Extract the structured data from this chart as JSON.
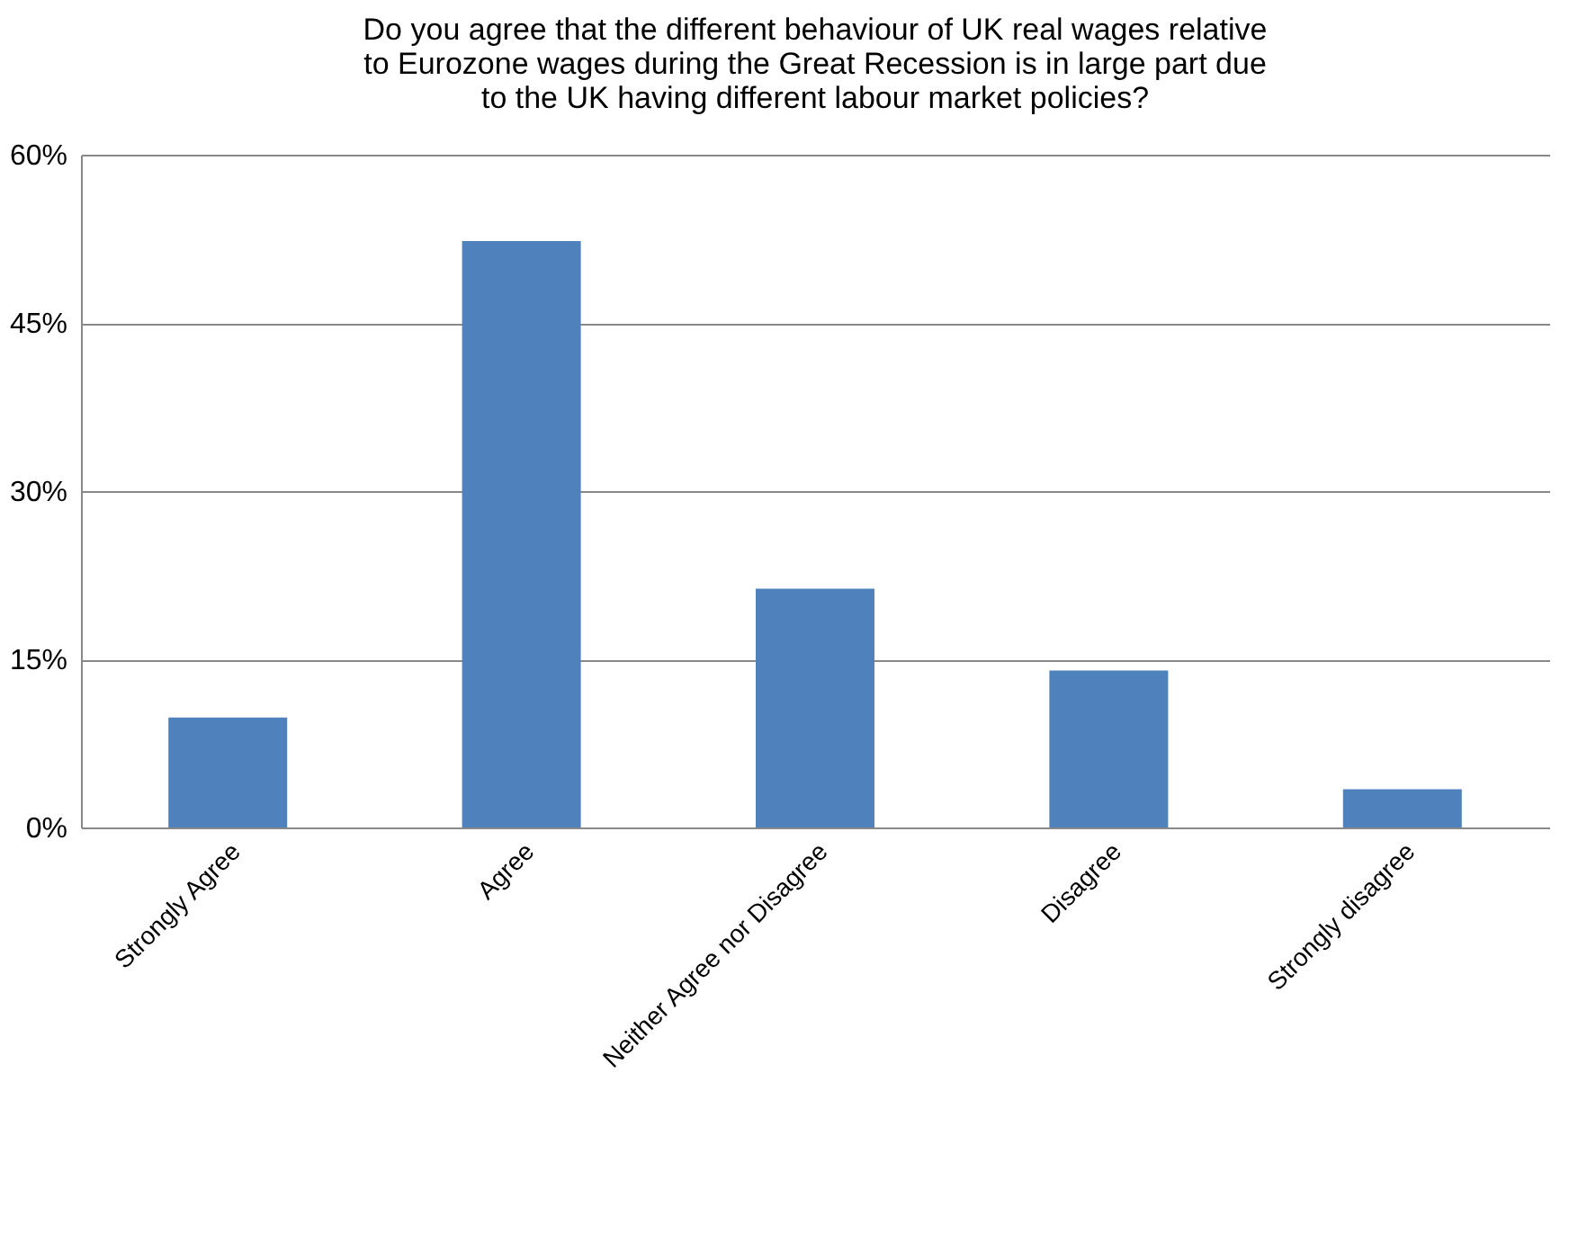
{
  "chart_data": {
    "type": "bar",
    "title": "Do you agree that the different behaviour of UK real wages relative\nto Eurozone wages during the Great Recession is in large part due\nto the UK having different labour market policies?",
    "categories": [
      "Strongly Agree",
      "Agree",
      "Neither Agree nor Disagree",
      "Disagree",
      "Strongly disagree"
    ],
    "values": [
      9.8,
      52.3,
      21.3,
      14.0,
      3.4
    ],
    "color": "#4f81bd",
    "ylim": [
      0,
      60
    ],
    "yticks": [
      {
        "value": 0,
        "label": "0%"
      },
      {
        "value": 15,
        "label": "15%"
      },
      {
        "value": 30,
        "label": "30%"
      },
      {
        "value": 45,
        "label": "45%"
      },
      {
        "value": 60,
        "label": "60%"
      }
    ],
    "grid": "y"
  }
}
